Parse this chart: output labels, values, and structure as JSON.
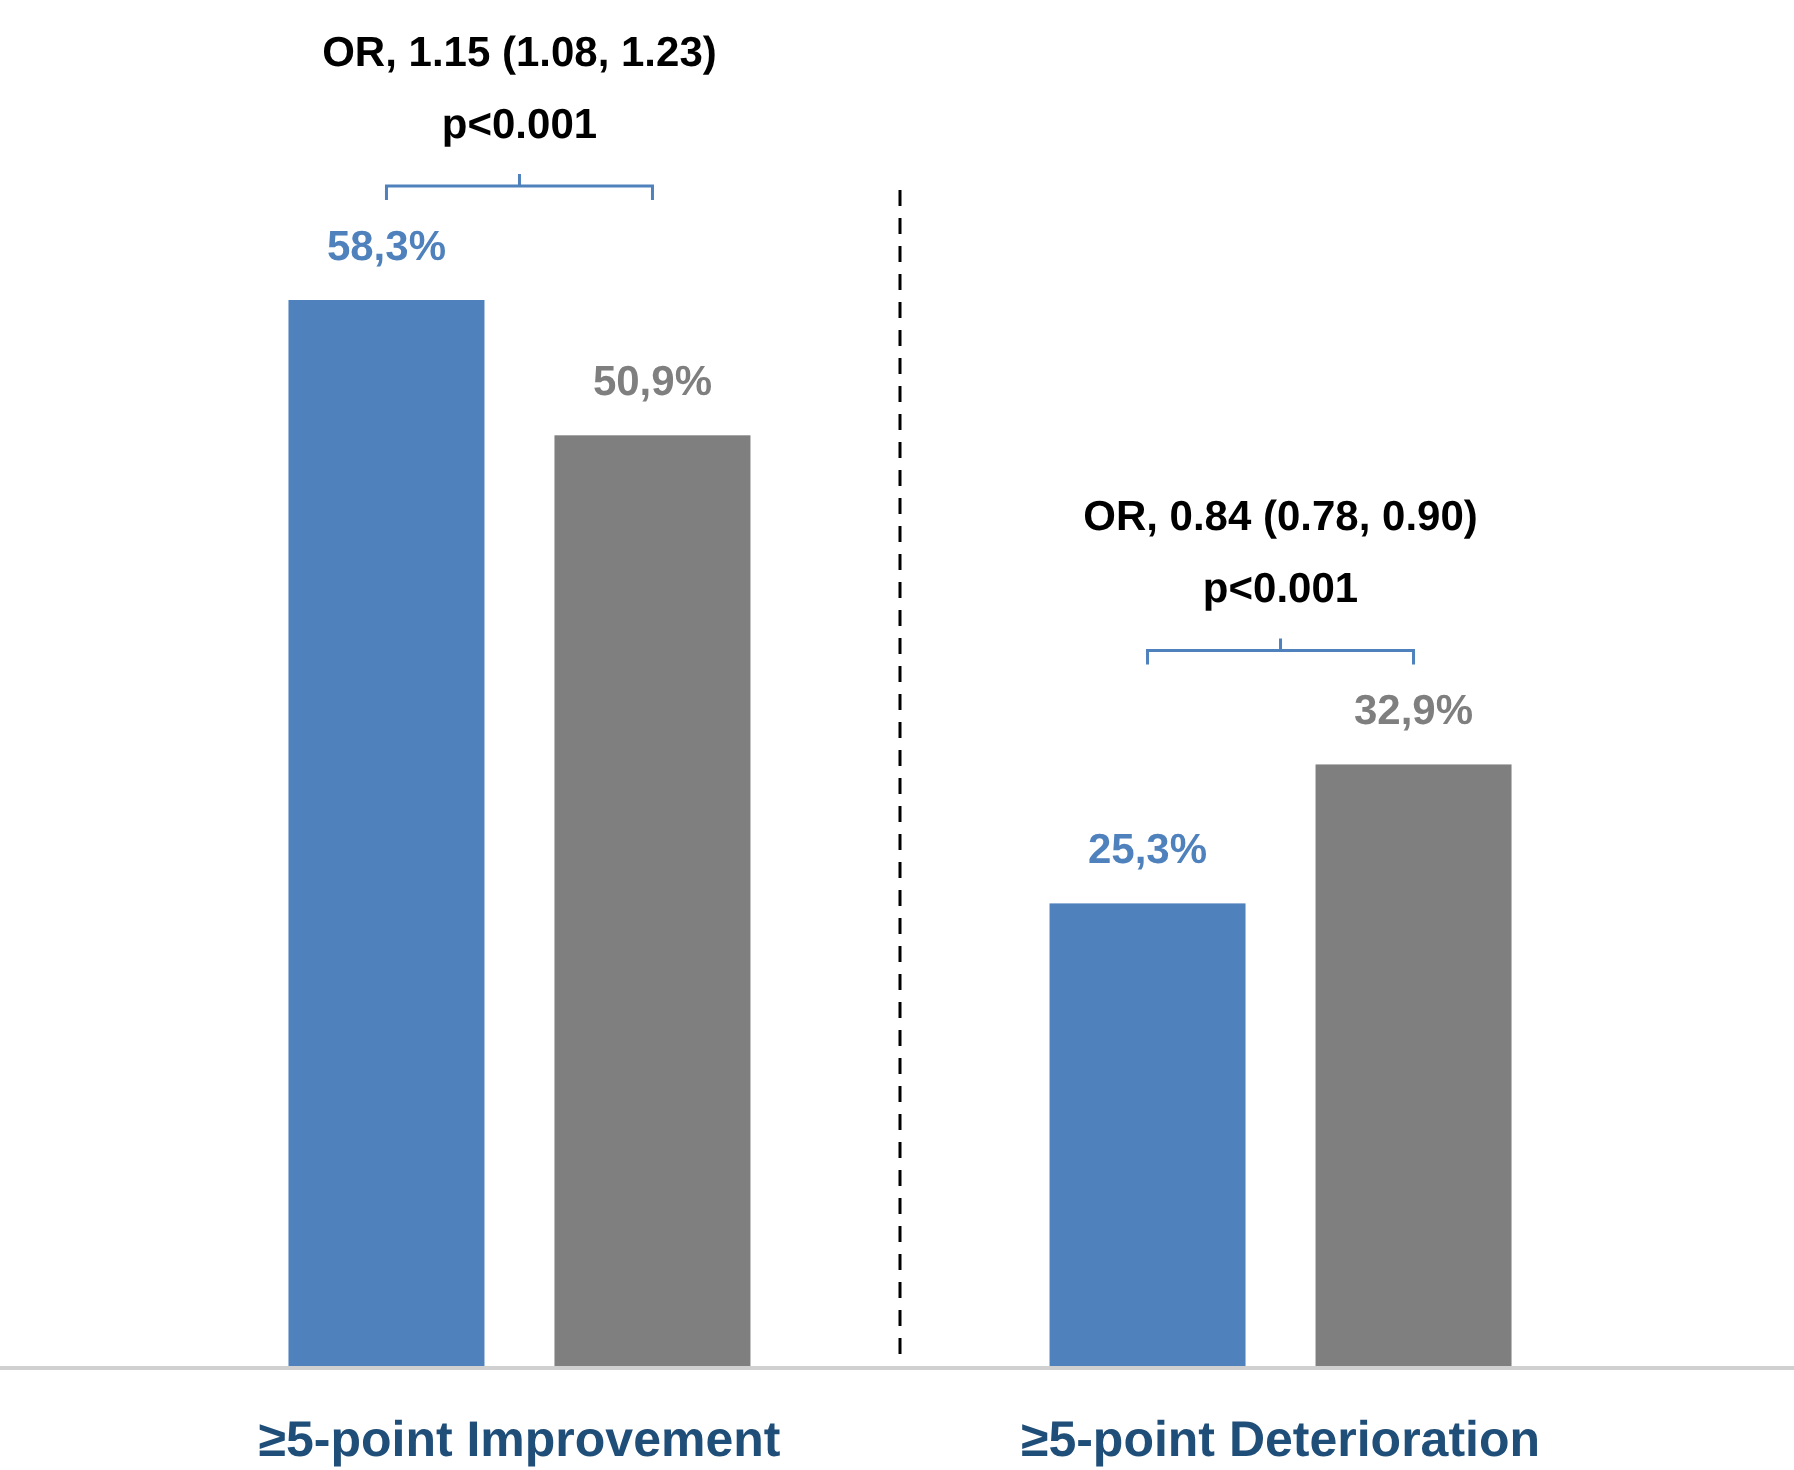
{
  "chart_data": {
    "type": "bar",
    "categories": [
      "≥5-point Improvement",
      "≥5-point Deterioration"
    ],
    "series": [
      {
        "color": "#4f81bd",
        "values": [
          58.3,
          25.3
        ],
        "value_labels": [
          "58,3%",
          "25,3%"
        ]
      },
      {
        "color": "#7f7f7f",
        "values": [
          50.9,
          32.9
        ],
        "value_labels": [
          "50,9%",
          "32,9%"
        ]
      }
    ],
    "annotations": [
      "OR, 1.15 (1.08, 1.23)\np<0.001",
      "OR, 0.84 (0.78, 0.90)\np<0.001"
    ]
  }
}
